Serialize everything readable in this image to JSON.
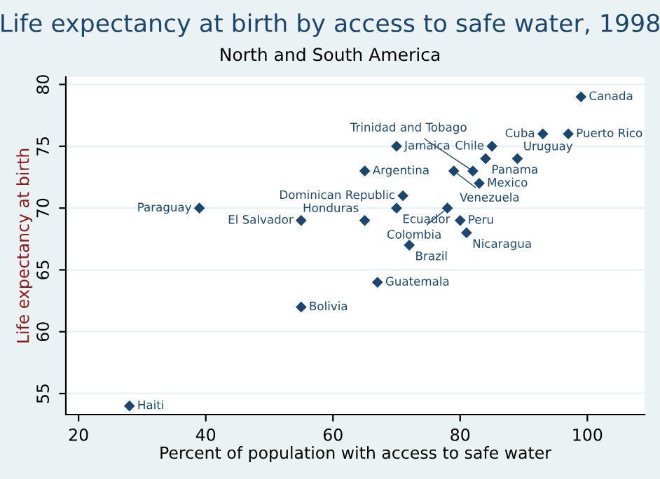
{
  "chart_data": {
    "type": "scatter",
    "title": "Life expectancy at birth by access to safe water, 1998",
    "subtitle": "North and South America",
    "xlabel": "Percent of population with access to safe water",
    "ylabel": "Life expectancy at birth",
    "x": [
      99,
      93,
      97,
      70,
      85,
      84,
      89,
      65,
      79,
      82,
      83,
      71,
      70,
      78,
      55,
      65,
      80,
      81,
      72,
      67,
      55,
      39,
      28
    ],
    "values": [
      79,
      76,
      76,
      75,
      75,
      74,
      74,
      73,
      73,
      73,
      72,
      71,
      70,
      70,
      69,
      69,
      69,
      68,
      67,
      64,
      62,
      70,
      54
    ],
    "color": "#1a476f",
    "marker": "diamond",
    "annotations": [
      {
        "text": "Canada",
        "x": 99,
        "y": 79
      },
      {
        "text": "Cuba",
        "x": 93,
        "y": 76
      },
      {
        "text": "Puerto Rico",
        "x": 97,
        "y": 76
      },
      {
        "text": "Jamaica",
        "x": 70,
        "y": 75
      },
      {
        "text": "Chile",
        "x": 85,
        "y": 75
      },
      {
        "text": "Panama",
        "x": 84,
        "y": 74
      },
      {
        "text": "Uruguay",
        "x": 89,
        "y": 74
      },
      {
        "text": "Argentina",
        "x": 65,
        "y": 73
      },
      {
        "text": "Venezuela",
        "x": 79,
        "y": 73
      },
      {
        "text": "Trinidad and Tobago",
        "x": 82,
        "y": 73
      },
      {
        "text": "Mexico",
        "x": 83,
        "y": 72
      },
      {
        "text": "Dominican Republic",
        "x": 71,
        "y": 71
      },
      {
        "text": "Ecuador",
        "x": 70,
        "y": 70
      },
      {
        "text": "Colombia",
        "x": 78,
        "y": 70
      },
      {
        "text": "El Salvador",
        "x": 55,
        "y": 69
      },
      {
        "text": "Honduras",
        "x": 65,
        "y": 69
      },
      {
        "text": "Peru",
        "x": 80,
        "y": 69
      },
      {
        "text": "Nicaragua",
        "x": 81,
        "y": 68
      },
      {
        "text": "Brazil",
        "x": 72,
        "y": 67
      },
      {
        "text": "Guatemala",
        "x": 67,
        "y": 64
      },
      {
        "text": "Bolivia",
        "x": 55,
        "y": 62
      },
      {
        "text": "Paraguay",
        "x": 39,
        "y": 70
      },
      {
        "text": "Haiti",
        "x": 28,
        "y": 54
      }
    ],
    "xlim": [
      18,
      109
    ],
    "ylim": [
      53.3,
      80.6
    ],
    "xticks": [
      20,
      40,
      60,
      80,
      100
    ],
    "yticks": [
      55,
      60,
      65,
      70,
      75,
      80
    ],
    "grid": "y"
  }
}
